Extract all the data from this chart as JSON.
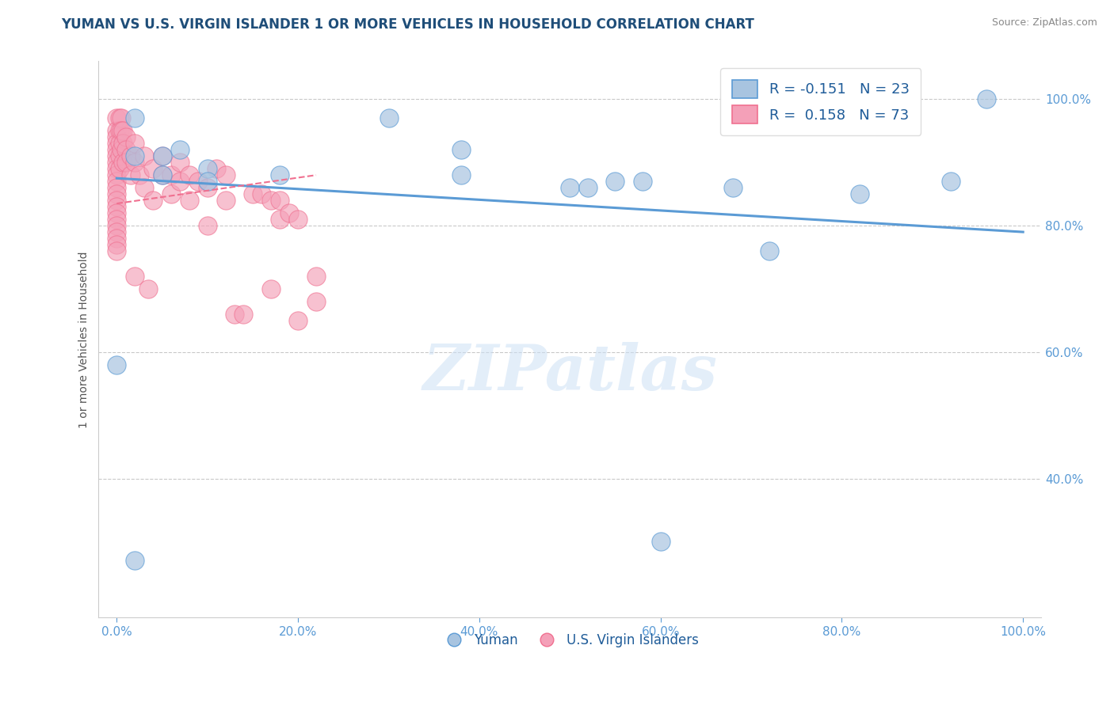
{
  "title": "YUMAN VS U.S. VIRGIN ISLANDER 1 OR MORE VEHICLES IN HOUSEHOLD CORRELATION CHART",
  "source": "Source: ZipAtlas.com",
  "ylabel": "1 or more Vehicles in Household",
  "watermark": "ZIPatlas",
  "legend_blue_r": "-0.151",
  "legend_blue_n": "23",
  "legend_pink_r": "0.158",
  "legend_pink_n": "73",
  "blue_color": "#a8c4e0",
  "pink_color": "#f4a0b8",
  "line_blue_color": "#5b9bd5",
  "line_pink_color": "#f07090",
  "title_color": "#1f4e79",
  "source_color": "#888888",
  "axis_label_color": "#555555",
  "tick_color": "#5b9bd5",
  "legend_text_color": "#1f5c99",
  "blue_scatter": [
    [
      0.0,
      0.58
    ],
    [
      0.02,
      0.97
    ],
    [
      0.02,
      0.91
    ],
    [
      0.05,
      0.91
    ],
    [
      0.05,
      0.88
    ],
    [
      0.07,
      0.92
    ],
    [
      0.1,
      0.89
    ],
    [
      0.1,
      0.87
    ],
    [
      0.18,
      0.88
    ],
    [
      0.3,
      0.97
    ],
    [
      0.38,
      0.92
    ],
    [
      0.38,
      0.88
    ],
    [
      0.5,
      0.86
    ],
    [
      0.55,
      0.87
    ],
    [
      0.58,
      0.87
    ],
    [
      0.68,
      0.86
    ],
    [
      0.72,
      0.76
    ],
    [
      0.82,
      0.85
    ],
    [
      0.92,
      0.87
    ],
    [
      0.6,
      0.3
    ],
    [
      0.96,
      1.0
    ],
    [
      0.02,
      0.27
    ],
    [
      0.52,
      0.86
    ]
  ],
  "pink_scatter": [
    [
      0.0,
      0.97
    ],
    [
      0.0,
      0.95
    ],
    [
      0.0,
      0.94
    ],
    [
      0.0,
      0.93
    ],
    [
      0.0,
      0.92
    ],
    [
      0.0,
      0.91
    ],
    [
      0.0,
      0.9
    ],
    [
      0.0,
      0.89
    ],
    [
      0.0,
      0.88
    ],
    [
      0.0,
      0.87
    ],
    [
      0.0,
      0.86
    ],
    [
      0.0,
      0.85
    ],
    [
      0.0,
      0.84
    ],
    [
      0.0,
      0.83
    ],
    [
      0.0,
      0.82
    ],
    [
      0.0,
      0.81
    ],
    [
      0.0,
      0.8
    ],
    [
      0.0,
      0.79
    ],
    [
      0.0,
      0.78
    ],
    [
      0.0,
      0.77
    ],
    [
      0.0,
      0.76
    ],
    [
      0.003,
      0.97
    ],
    [
      0.003,
      0.95
    ],
    [
      0.003,
      0.93
    ],
    [
      0.003,
      0.91
    ],
    [
      0.003,
      0.89
    ],
    [
      0.005,
      0.97
    ],
    [
      0.005,
      0.95
    ],
    [
      0.005,
      0.92
    ],
    [
      0.007,
      0.95
    ],
    [
      0.007,
      0.93
    ],
    [
      0.007,
      0.9
    ],
    [
      0.01,
      0.94
    ],
    [
      0.01,
      0.92
    ],
    [
      0.01,
      0.9
    ],
    [
      0.015,
      0.91
    ],
    [
      0.015,
      0.88
    ],
    [
      0.02,
      0.93
    ],
    [
      0.02,
      0.9
    ],
    [
      0.025,
      0.88
    ],
    [
      0.03,
      0.91
    ],
    [
      0.03,
      0.86
    ],
    [
      0.04,
      0.89
    ],
    [
      0.04,
      0.84
    ],
    [
      0.05,
      0.91
    ],
    [
      0.05,
      0.88
    ],
    [
      0.06,
      0.88
    ],
    [
      0.06,
      0.85
    ],
    [
      0.07,
      0.9
    ],
    [
      0.07,
      0.87
    ],
    [
      0.08,
      0.88
    ],
    [
      0.08,
      0.84
    ],
    [
      0.09,
      0.87
    ],
    [
      0.1,
      0.86
    ],
    [
      0.1,
      0.8
    ],
    [
      0.11,
      0.89
    ],
    [
      0.12,
      0.88
    ],
    [
      0.12,
      0.84
    ],
    [
      0.13,
      0.66
    ],
    [
      0.14,
      0.66
    ],
    [
      0.15,
      0.85
    ],
    [
      0.16,
      0.85
    ],
    [
      0.17,
      0.84
    ],
    [
      0.17,
      0.7
    ],
    [
      0.18,
      0.84
    ],
    [
      0.18,
      0.81
    ],
    [
      0.19,
      0.82
    ],
    [
      0.2,
      0.81
    ],
    [
      0.22,
      0.72
    ],
    [
      0.02,
      0.72
    ],
    [
      0.035,
      0.7
    ],
    [
      0.22,
      0.68
    ],
    [
      0.2,
      0.65
    ]
  ],
  "xlim": [
    -0.02,
    1.02
  ],
  "ylim": [
    0.18,
    1.06
  ],
  "xtick_values": [
    0.0,
    0.2,
    0.4,
    0.6,
    0.8,
    1.0
  ],
  "xtick_labels": [
    "0.0%",
    "20.0%",
    "40.0%",
    "60.0%",
    "80.0%",
    "100.0%"
  ],
  "ytick_values": [
    0.4,
    0.6,
    0.8,
    1.0
  ],
  "ytick_labels": [
    "40.0%",
    "60.0%",
    "80.0%",
    "100.0%"
  ],
  "blue_trend_x": [
    0.0,
    1.0
  ],
  "blue_trend_y": [
    0.875,
    0.79
  ],
  "pink_trend_x": [
    0.0,
    0.22
  ],
  "pink_trend_y": [
    0.835,
    0.88
  ]
}
